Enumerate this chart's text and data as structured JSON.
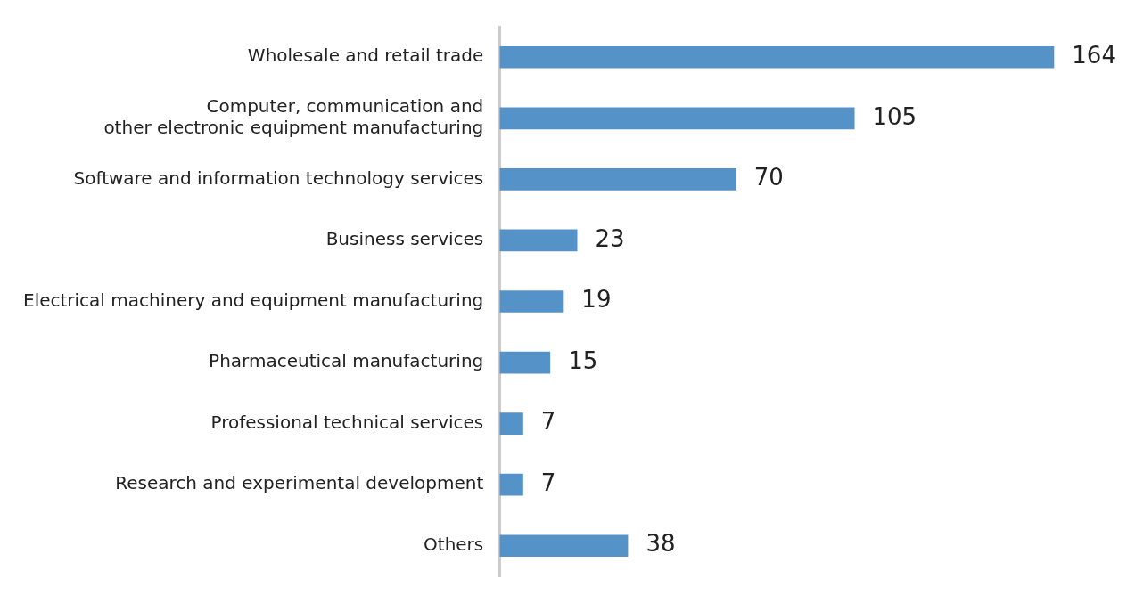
{
  "chart_data": {
    "type": "bar",
    "orientation": "horizontal",
    "data_labels": true,
    "legend": false,
    "categories": [
      "Wholesale and retail trade",
      "Computer, communication and\nother electronic equipment manufacturing",
      "Software and information technology services",
      "Business services",
      "Electrical machinery and equipment manufacturing",
      "Pharmaceutical manufacturing",
      "Professional technical services",
      "Research and experimental development",
      "Others"
    ],
    "values": [
      164,
      105,
      70,
      23,
      19,
      15,
      7,
      7,
      38
    ],
    "color": "#5592c8"
  }
}
